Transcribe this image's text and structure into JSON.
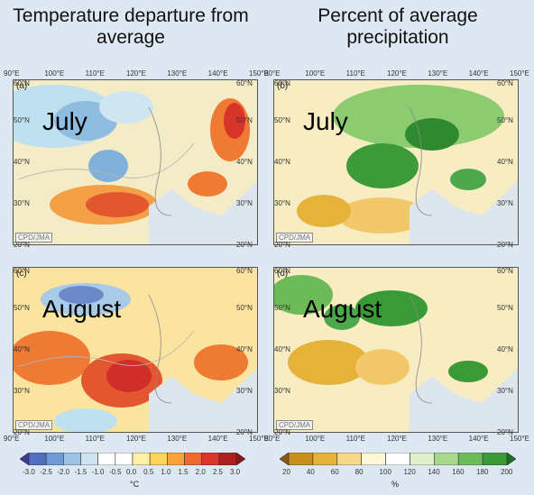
{
  "titles": {
    "left": "Temperature departure from average",
    "right": "Percent of average precipitation"
  },
  "panels": [
    {
      "letter": "(a)",
      "month": "July",
      "credit": "CPD/JMA",
      "kind": "temp"
    },
    {
      "letter": "(b)",
      "month": "July",
      "credit": "CPD/JMA",
      "kind": "precip"
    },
    {
      "letter": "(c)",
      "month": "August",
      "credit": "CPD/JMA",
      "kind": "temp"
    },
    {
      "letter": "(d)",
      "month": "August",
      "credit": "CPD/JMA",
      "kind": "precip"
    }
  ],
  "axes": {
    "lon_labels": [
      "90°E",
      "100°E",
      "110°E",
      "120°E",
      "130°E",
      "140°E",
      "150°E"
    ],
    "lat_labels": [
      "60°N",
      "50°N",
      "40°N",
      "30°N",
      "20°N"
    ]
  },
  "colorbars": {
    "temperature": {
      "unit": "°C",
      "ticks": [
        "-3.0",
        "-2.5",
        "-2.0",
        "-1.5",
        "-1.0",
        "-0.5",
        "0.0",
        "0.5",
        "1.0",
        "1.5",
        "2.0",
        "2.5",
        "3.0"
      ],
      "colors": [
        "#3a3a9a",
        "#4f6fc0",
        "#6f9ad6",
        "#9fc3e6",
        "#cfe2f2",
        "#ffffff",
        "#ffffff",
        "#fff0a8",
        "#ffd25a",
        "#fba33a",
        "#ef6a2e",
        "#d9352a",
        "#b01f1f",
        "#8f1414"
      ]
    },
    "precipitation": {
      "unit": "%",
      "ticks": [
        "20",
        "40",
        "60",
        "80",
        "100",
        "120",
        "140",
        "160",
        "180",
        "200"
      ],
      "colors": [
        "#8a5a14",
        "#c98f1c",
        "#e6b33a",
        "#f6d98a",
        "#fff7d6",
        "#ffffff",
        "#dff0cc",
        "#a9d88c",
        "#6dbb58",
        "#3a9a35",
        "#1f6f22"
      ]
    }
  },
  "colors": {
    "land_base": "#f0efe0",
    "sea": "#dde6ec",
    "border_line": "#b5b5b5"
  }
}
